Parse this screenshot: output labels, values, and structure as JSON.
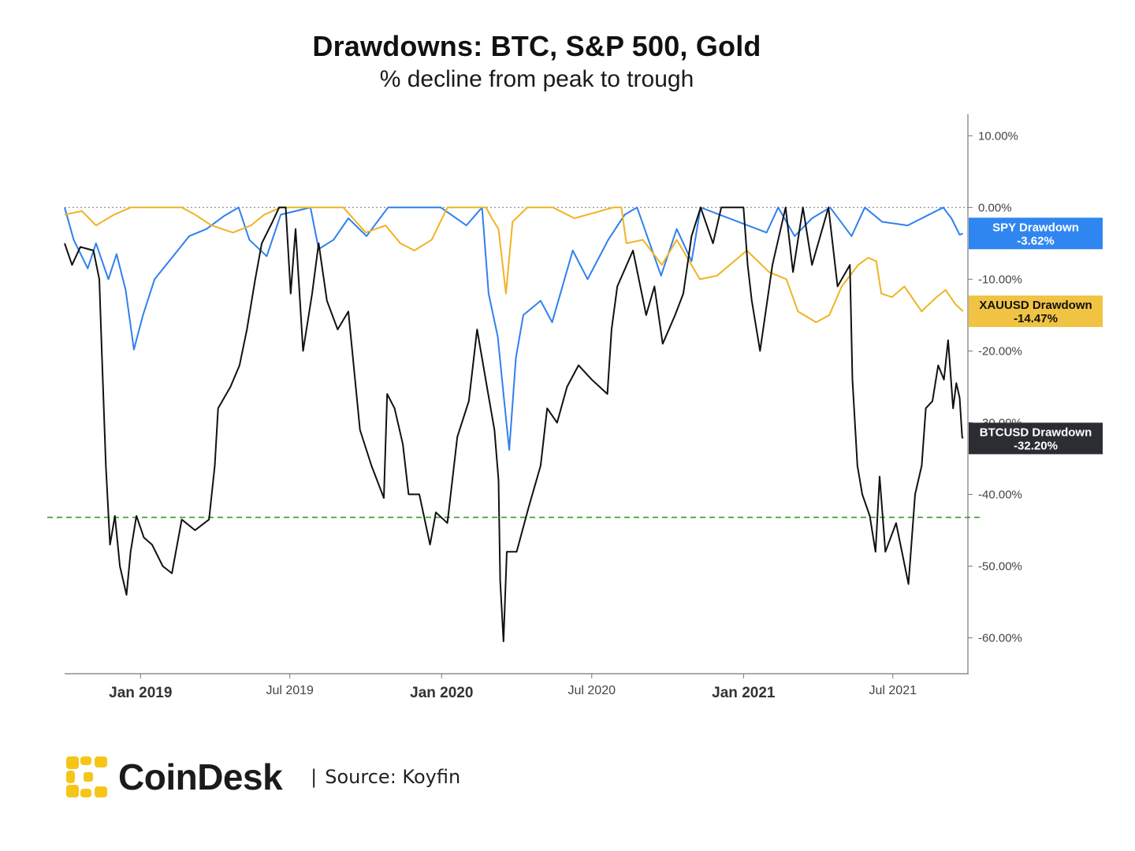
{
  "header": {
    "title": "Drawdowns: BTC, S&P 500, Gold",
    "subtitle": "% decline from peak to trough"
  },
  "footer": {
    "brand": "CoinDesk",
    "source_separator": "|",
    "source": "Source:  Koyfin"
  },
  "chart_data": {
    "type": "line",
    "title": "Drawdowns: BTC, S&P 500, Gold",
    "subtitle": "% decline from peak to trough",
    "xlim": [
      "2018-10-01",
      "2021-09-30"
    ],
    "ylim": [
      -65,
      13
    ],
    "x_ticks": [
      {
        "date": "2019-01-01",
        "label": "Jan 2019",
        "major": true
      },
      {
        "date": "2019-07-01",
        "label": "Jul 2019",
        "major": false
      },
      {
        "date": "2020-01-01",
        "label": "Jan 2020",
        "major": true
      },
      {
        "date": "2020-07-01",
        "label": "Jul 2020",
        "major": false
      },
      {
        "date": "2021-01-01",
        "label": "Jan 2021",
        "major": true
      },
      {
        "date": "2021-07-01",
        "label": "Jul 2021",
        "major": false
      }
    ],
    "y_ticks": [
      {
        "value": 10,
        "label": "10.00%"
      },
      {
        "value": 0,
        "label": "0.00%"
      },
      {
        "value": -10,
        "label": "-10.00%"
      },
      {
        "value": -20,
        "label": "-20.00%"
      },
      {
        "value": -30,
        "label": "-30.00%"
      },
      {
        "value": -40,
        "label": "-40.00%"
      },
      {
        "value": -50,
        "label": "-50.00%"
      },
      {
        "value": -60,
        "label": "-60.00%"
      }
    ],
    "reference_lines": [
      {
        "value": 0,
        "style": "dotted",
        "color": "#888888"
      },
      {
        "value": -43.2,
        "style": "dashed",
        "color": "#3a9a2a"
      }
    ],
    "legend_placement": "right",
    "series": [
      {
        "name": "SPY Drawdown",
        "last_label": "-3.62%",
        "color": "#2f80ed",
        "label_bg": "#2f86f0",
        "label_fg": "#ffffff",
        "points": [
          [
            "2018-10-01",
            0
          ],
          [
            "2018-10-12",
            -4.5
          ],
          [
            "2018-10-29",
            -8.5
          ],
          [
            "2018-11-08",
            -5
          ],
          [
            "2018-11-23",
            -10
          ],
          [
            "2018-12-03",
            -6.5
          ],
          [
            "2018-12-14",
            -11.5
          ],
          [
            "2018-12-24",
            -19.8
          ],
          [
            "2019-01-04",
            -15
          ],
          [
            "2019-01-18",
            -10
          ],
          [
            "2019-02-08",
            -7
          ],
          [
            "2019-03-01",
            -4
          ],
          [
            "2019-03-22",
            -3
          ],
          [
            "2019-04-12",
            -1.2
          ],
          [
            "2019-04-30",
            0
          ],
          [
            "2019-05-13",
            -4.5
          ],
          [
            "2019-06-03",
            -6.8
          ],
          [
            "2019-06-20",
            -1
          ],
          [
            "2019-07-26",
            0
          ],
          [
            "2019-08-05",
            -5.8
          ],
          [
            "2019-08-23",
            -4.5
          ],
          [
            "2019-09-10",
            -1.5
          ],
          [
            "2019-10-02",
            -4
          ],
          [
            "2019-10-28",
            0
          ],
          [
            "2019-12-31",
            0
          ],
          [
            "2020-01-31",
            -2.5
          ],
          [
            "2020-02-19",
            0
          ],
          [
            "2020-02-27",
            -12
          ],
          [
            "2020-03-09",
            -18
          ],
          [
            "2020-03-16",
            -26
          ],
          [
            "2020-03-23",
            -33.8
          ],
          [
            "2020-03-31",
            -21
          ],
          [
            "2020-04-09",
            -15
          ],
          [
            "2020-04-30",
            -13
          ],
          [
            "2020-05-14",
            -16
          ],
          [
            "2020-06-08",
            -6
          ],
          [
            "2020-06-26",
            -10
          ],
          [
            "2020-07-21",
            -4.5
          ],
          [
            "2020-08-10",
            -1
          ],
          [
            "2020-08-25",
            0
          ],
          [
            "2020-09-23",
            -9.5
          ],
          [
            "2020-10-12",
            -3
          ],
          [
            "2020-10-30",
            -7.5
          ],
          [
            "2020-11-10",
            0
          ],
          [
            "2021-01-29",
            -3.5
          ],
          [
            "2021-02-12",
            0
          ],
          [
            "2021-03-04",
            -4
          ],
          [
            "2021-03-25",
            -1.5
          ],
          [
            "2021-04-16",
            0
          ],
          [
            "2021-05-12",
            -4
          ],
          [
            "2021-05-28",
            0
          ],
          [
            "2021-06-18",
            -2
          ],
          [
            "2021-07-19",
            -2.5
          ],
          [
            "2021-08-31",
            0
          ],
          [
            "2021-09-10",
            -1.5
          ],
          [
            "2021-09-20",
            -3.8
          ],
          [
            "2021-09-24",
            -3.62
          ]
        ]
      },
      {
        "name": "XAUUSD Drawdown",
        "last_label": "-14.47%",
        "color": "#f0b323",
        "label_bg": "#f0c343",
        "label_fg": "#111111",
        "points": [
          [
            "2018-10-01",
            -1
          ],
          [
            "2018-10-22",
            -0.5
          ],
          [
            "2018-11-08",
            -2.5
          ],
          [
            "2018-11-30",
            -1
          ],
          [
            "2018-12-20",
            0
          ],
          [
            "2019-01-30",
            0
          ],
          [
            "2019-02-20",
            0
          ],
          [
            "2019-03-08",
            -1
          ],
          [
            "2019-03-28",
            -2.5
          ],
          [
            "2019-04-23",
            -3.5
          ],
          [
            "2019-05-15",
            -2.5
          ],
          [
            "2019-05-31",
            -1
          ],
          [
            "2019-06-20",
            0
          ],
          [
            "2019-08-07",
            0
          ],
          [
            "2019-09-04",
            0
          ],
          [
            "2019-10-01",
            -3.5
          ],
          [
            "2019-10-25",
            -2.5
          ],
          [
            "2019-11-12",
            -5
          ],
          [
            "2019-11-29",
            -6
          ],
          [
            "2019-12-20",
            -4.5
          ],
          [
            "2020-01-08",
            0
          ],
          [
            "2020-02-24",
            0
          ],
          [
            "2020-03-02",
            -1.5
          ],
          [
            "2020-03-10",
            -3
          ],
          [
            "2020-03-19",
            -12
          ],
          [
            "2020-03-27",
            -2
          ],
          [
            "2020-04-14",
            0
          ],
          [
            "2020-05-15",
            0
          ],
          [
            "2020-06-10",
            -1.5
          ],
          [
            "2020-07-27",
            0
          ],
          [
            "2020-08-06",
            0
          ],
          [
            "2020-08-12",
            -5
          ],
          [
            "2020-09-01",
            -4.5
          ],
          [
            "2020-09-24",
            -8
          ],
          [
            "2020-10-12",
            -4.5
          ],
          [
            "2020-11-09",
            -10
          ],
          [
            "2020-11-30",
            -9.5
          ],
          [
            "2021-01-05",
            -6
          ],
          [
            "2021-02-01",
            -9
          ],
          [
            "2021-02-22",
            -10
          ],
          [
            "2021-03-08",
            -14.5
          ],
          [
            "2021-03-30",
            -16
          ],
          [
            "2021-04-15",
            -15
          ],
          [
            "2021-04-30",
            -11
          ],
          [
            "2021-05-20",
            -8
          ],
          [
            "2021-06-01",
            -7
          ],
          [
            "2021-06-11",
            -7.5
          ],
          [
            "2021-06-17",
            -12
          ],
          [
            "2021-06-30",
            -12.5
          ],
          [
            "2021-07-15",
            -11
          ],
          [
            "2021-08-05",
            -14.5
          ],
          [
            "2021-08-09",
            -14
          ],
          [
            "2021-08-23",
            -12.5
          ],
          [
            "2021-09-03",
            -11.5
          ],
          [
            "2021-09-15",
            -13.5
          ],
          [
            "2021-09-24",
            -14.47
          ]
        ]
      },
      {
        "name": "BTCUSD Drawdown",
        "last_label": "-32.20%",
        "color": "#111111",
        "label_bg": "#2b2d33",
        "label_fg": "#ffffff",
        "points": [
          [
            "2018-10-01",
            -5
          ],
          [
            "2018-10-10",
            -8
          ],
          [
            "2018-10-20",
            -5.5
          ],
          [
            "2018-11-05",
            -6
          ],
          [
            "2018-11-12",
            -10
          ],
          [
            "2018-11-15",
            -20
          ],
          [
            "2018-11-20",
            -36
          ],
          [
            "2018-11-25",
            -47
          ],
          [
            "2018-12-01",
            -43
          ],
          [
            "2018-12-07",
            -50
          ],
          [
            "2018-12-15",
            -54
          ],
          [
            "2018-12-20",
            -48
          ],
          [
            "2018-12-27",
            -43
          ],
          [
            "2019-01-05",
            -46
          ],
          [
            "2019-01-15",
            -47
          ],
          [
            "2019-01-28",
            -50
          ],
          [
            "2019-02-08",
            -51
          ],
          [
            "2019-02-20",
            -43.5
          ],
          [
            "2019-03-08",
            -45
          ],
          [
            "2019-03-25",
            -43.5
          ],
          [
            "2019-04-01",
            -36
          ],
          [
            "2019-04-05",
            -28
          ],
          [
            "2019-04-20",
            -25
          ],
          [
            "2019-05-01",
            -22
          ],
          [
            "2019-05-10",
            -17
          ],
          [
            "2019-05-20",
            -10
          ],
          [
            "2019-05-28",
            -5
          ],
          [
            "2019-06-10",
            -2
          ],
          [
            "2019-06-18",
            0
          ],
          [
            "2019-06-26",
            0
          ],
          [
            "2019-07-02",
            -12
          ],
          [
            "2019-07-08",
            -3
          ],
          [
            "2019-07-17",
            -20
          ],
          [
            "2019-07-28",
            -12
          ],
          [
            "2019-08-05",
            -5
          ],
          [
            "2019-08-15",
            -13
          ],
          [
            "2019-08-28",
            -17
          ],
          [
            "2019-09-10",
            -14.5
          ],
          [
            "2019-09-24",
            -31
          ],
          [
            "2019-10-08",
            -36
          ],
          [
            "2019-10-23",
            -40.5
          ],
          [
            "2019-10-27",
            -26
          ],
          [
            "2019-11-05",
            -28
          ],
          [
            "2019-11-15",
            -33
          ],
          [
            "2019-11-22",
            -40
          ],
          [
            "2019-12-05",
            -40
          ],
          [
            "2019-12-18",
            -47
          ],
          [
            "2019-12-25",
            -42.5
          ],
          [
            "2020-01-08",
            -44
          ],
          [
            "2020-01-20",
            -32
          ],
          [
            "2020-02-03",
            -27
          ],
          [
            "2020-02-13",
            -17
          ],
          [
            "2020-02-25",
            -25
          ],
          [
            "2020-03-05",
            -31
          ],
          [
            "2020-03-10",
            -38
          ],
          [
            "2020-03-12",
            -52
          ],
          [
            "2020-03-16",
            -60.5
          ],
          [
            "2020-03-20",
            -48
          ],
          [
            "2020-04-01",
            -48
          ],
          [
            "2020-04-15",
            -42
          ],
          [
            "2020-04-30",
            -36
          ],
          [
            "2020-05-08",
            -28
          ],
          [
            "2020-05-20",
            -30
          ],
          [
            "2020-06-01",
            -25
          ],
          [
            "2020-06-15",
            -22
          ],
          [
            "2020-07-01",
            -24
          ],
          [
            "2020-07-20",
            -26
          ],
          [
            "2020-07-25",
            -17
          ],
          [
            "2020-08-01",
            -11
          ],
          [
            "2020-08-20",
            -6
          ],
          [
            "2020-09-05",
            -15
          ],
          [
            "2020-09-15",
            -11
          ],
          [
            "2020-09-25",
            -19
          ],
          [
            "2020-10-10",
            -15
          ],
          [
            "2020-10-20",
            -12
          ],
          [
            "2020-10-30",
            -4
          ],
          [
            "2020-11-10",
            0
          ],
          [
            "2020-11-25",
            -5
          ],
          [
            "2020-12-05",
            0
          ],
          [
            "2021-01-01",
            0
          ],
          [
            "2021-01-06",
            -8
          ],
          [
            "2021-01-11",
            -13
          ],
          [
            "2021-01-21",
            -20
          ],
          [
            "2021-02-05",
            -8
          ],
          [
            "2021-02-21",
            0
          ],
          [
            "2021-03-02",
            -9
          ],
          [
            "2021-03-14",
            0
          ],
          [
            "2021-03-25",
            -8
          ],
          [
            "2021-04-14",
            0
          ],
          [
            "2021-04-25",
            -11
          ],
          [
            "2021-05-10",
            -8
          ],
          [
            "2021-05-13",
            -24
          ],
          [
            "2021-05-19",
            -36
          ],
          [
            "2021-05-25",
            -40
          ],
          [
            "2021-06-03",
            -43
          ],
          [
            "2021-06-10",
            -48
          ],
          [
            "2021-06-15",
            -37.5
          ],
          [
            "2021-06-22",
            -48
          ],
          [
            "2021-07-05",
            -44
          ],
          [
            "2021-07-12",
            -48
          ],
          [
            "2021-07-20",
            -52.5
          ],
          [
            "2021-07-28",
            -40
          ],
          [
            "2021-08-05",
            -36
          ],
          [
            "2021-08-10",
            -28
          ],
          [
            "2021-08-18",
            -27
          ],
          [
            "2021-08-25",
            -22
          ],
          [
            "2021-09-01",
            -24
          ],
          [
            "2021-09-06",
            -18.5
          ],
          [
            "2021-09-12",
            -28
          ],
          [
            "2021-09-16",
            -24.5
          ],
          [
            "2021-09-20",
            -26.5
          ],
          [
            "2021-09-23",
            -32
          ],
          [
            "2021-09-24",
            -32.2
          ]
        ]
      }
    ]
  }
}
